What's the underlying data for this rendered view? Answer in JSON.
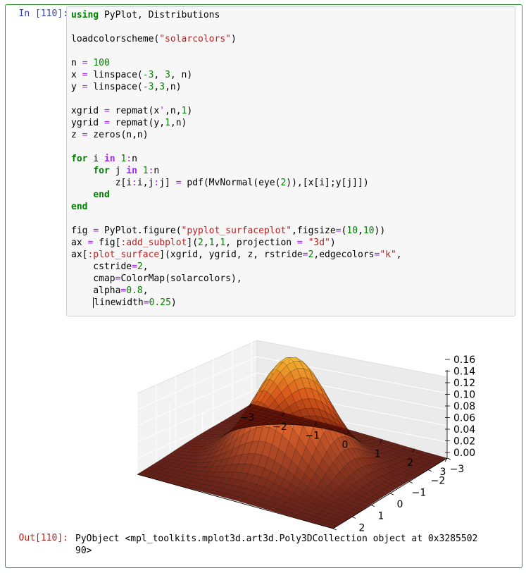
{
  "input_prompt": "In [110]:",
  "output_prompt": "Out[110]:",
  "code_lines": [
    [
      {
        "t": "using",
        "c": "kw"
      },
      {
        "t": " PyPlot, Distributions"
      }
    ],
    [],
    [
      {
        "t": "loadcolorscheme("
      },
      {
        "t": "\"solarcolors\"",
        "c": "str"
      },
      {
        "t": ")"
      }
    ],
    [],
    [
      {
        "t": "n "
      },
      {
        "t": "=",
        "c": "op"
      },
      {
        "t": " "
      },
      {
        "t": "100",
        "c": "num"
      }
    ],
    [
      {
        "t": "x "
      },
      {
        "t": "=",
        "c": "op"
      },
      {
        "t": " linspace("
      },
      {
        "t": "-3",
        "c": "num"
      },
      {
        "t": ", "
      },
      {
        "t": "3",
        "c": "num"
      },
      {
        "t": ", n)"
      }
    ],
    [
      {
        "t": "y "
      },
      {
        "t": "=",
        "c": "op"
      },
      {
        "t": " linspace("
      },
      {
        "t": "-3",
        "c": "num"
      },
      {
        "t": ","
      },
      {
        "t": "3",
        "c": "num"
      },
      {
        "t": ",n)"
      }
    ],
    [],
    [
      {
        "t": "xgrid "
      },
      {
        "t": "=",
        "c": "op"
      },
      {
        "t": " repmat(x"
      },
      {
        "t": "'",
        "c": "op"
      },
      {
        "t": ",n,"
      },
      {
        "t": "1",
        "c": "num"
      },
      {
        "t": ")"
      }
    ],
    [
      {
        "t": "ygrid "
      },
      {
        "t": "=",
        "c": "op"
      },
      {
        "t": " repmat(y,"
      },
      {
        "t": "1",
        "c": "num"
      },
      {
        "t": ",n)"
      }
    ],
    [
      {
        "t": "z "
      },
      {
        "t": "=",
        "c": "op"
      },
      {
        "t": " zeros(n,n)"
      }
    ],
    [],
    [
      {
        "t": "for",
        "c": "kw"
      },
      {
        "t": " i "
      },
      {
        "t": "in",
        "c": "kp"
      },
      {
        "t": " "
      },
      {
        "t": "1",
        "c": "num"
      },
      {
        "t": ":",
        "c": "op"
      },
      {
        "t": "n"
      }
    ],
    [
      {
        "t": "    "
      },
      {
        "t": "for",
        "c": "kw"
      },
      {
        "t": " j "
      },
      {
        "t": "in",
        "c": "kp"
      },
      {
        "t": " "
      },
      {
        "t": "1",
        "c": "num"
      },
      {
        "t": ":",
        "c": "op"
      },
      {
        "t": "n"
      }
    ],
    [
      {
        "t": "        z[i"
      },
      {
        "t": ":",
        "c": "op"
      },
      {
        "t": "i,j"
      },
      {
        "t": ":",
        "c": "op"
      },
      {
        "t": "j] "
      },
      {
        "t": "=",
        "c": "op"
      },
      {
        "t": " pdf(MvNormal(eye("
      },
      {
        "t": "2",
        "c": "num"
      },
      {
        "t": ")),[x[i];y[j]])"
      }
    ],
    [
      {
        "t": "    "
      },
      {
        "t": "end",
        "c": "kw"
      }
    ],
    [
      {
        "t": "end",
        "c": "kw"
      }
    ],
    [],
    [
      {
        "t": "fig "
      },
      {
        "t": "=",
        "c": "op"
      },
      {
        "t": " PyPlot.figure("
      },
      {
        "t": "\"pyplot_surfaceplot\"",
        "c": "str"
      },
      {
        "t": ",figsize"
      },
      {
        "t": "=",
        "c": "op"
      },
      {
        "t": "("
      },
      {
        "t": "10",
        "c": "num"
      },
      {
        "t": ","
      },
      {
        "t": "10",
        "c": "num"
      },
      {
        "t": "))"
      }
    ],
    [
      {
        "t": "ax "
      },
      {
        "t": "=",
        "c": "op"
      },
      {
        "t": " fig["
      },
      {
        "t": ":add_subplot",
        "c": "sym"
      },
      {
        "t": "]("
      },
      {
        "t": "2",
        "c": "num"
      },
      {
        "t": ","
      },
      {
        "t": "1",
        "c": "num"
      },
      {
        "t": ","
      },
      {
        "t": "1",
        "c": "num"
      },
      {
        "t": ", projection "
      },
      {
        "t": "=",
        "c": "op"
      },
      {
        "t": " "
      },
      {
        "t": "\"3d\"",
        "c": "str"
      },
      {
        "t": ")"
      }
    ],
    [
      {
        "t": "ax["
      },
      {
        "t": ":plot_surface",
        "c": "sym"
      },
      {
        "t": "](xgrid, ygrid, z, rstride"
      },
      {
        "t": "=",
        "c": "op"
      },
      {
        "t": "2",
        "c": "num"
      },
      {
        "t": ",edgecolors"
      },
      {
        "t": "=",
        "c": "op"
      },
      {
        "t": "\"k\"",
        "c": "str"
      },
      {
        "t": ","
      }
    ],
    [
      {
        "t": "    cstride"
      },
      {
        "t": "=",
        "c": "op"
      },
      {
        "t": "2",
        "c": "num"
      },
      {
        "t": ","
      }
    ],
    [
      {
        "t": "    cmap"
      },
      {
        "t": "=",
        "c": "op"
      },
      {
        "t": "ColorMap(solarcolors),"
      }
    ],
    [
      {
        "t": "    alpha"
      },
      {
        "t": "=",
        "c": "op"
      },
      {
        "t": "0.8",
        "c": "num"
      },
      {
        "t": ","
      }
    ],
    [
      {
        "t": "    "
      },
      {
        "t": "",
        "c": "cursor"
      },
      {
        "t": "linewidth"
      },
      {
        "t": "=",
        "c": "op"
      },
      {
        "t": "0.25",
        "c": "num"
      },
      {
        "t": ")"
      }
    ]
  ],
  "output_text": "PyObject <mpl_toolkits.mplot3d.art3d.Poly3DCollection object at 0x3285502\n90>",
  "chart_data": {
    "type": "surface",
    "function": "bivariate standard normal pdf",
    "x_range": [
      -3,
      3
    ],
    "y_range": [
      -3,
      3
    ],
    "grid_points": 100,
    "z_max": 0.159,
    "x_ticks": [
      "−3",
      "−2",
      "−1",
      "0",
      "1",
      "2",
      "3"
    ],
    "y_ticks": [
      "−3",
      "−2",
      "−1",
      "0",
      "1",
      "2",
      "3"
    ],
    "z_ticks": [
      "0.00",
      "0.02",
      "0.04",
      "0.06",
      "0.08",
      "0.10",
      "0.12",
      "0.14",
      "0.16"
    ],
    "zlim": [
      0,
      0.16
    ],
    "grid": true,
    "colormap": "solarcolors",
    "colors": {
      "low": "#5a1008",
      "mid": "#d8541a",
      "high": "#f7c233",
      "edge": "#000000",
      "pane": "#f2f2f2"
    }
  }
}
